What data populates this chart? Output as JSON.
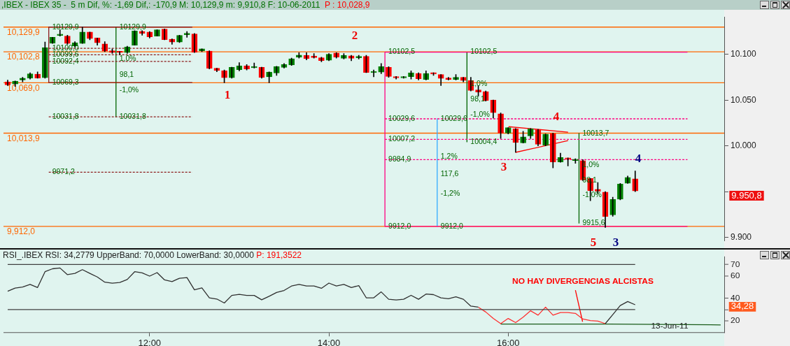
{
  "chart_data": [
    {
      "type": "candlestick",
      "title": ",IBEX - IBEX 35 -  5 m Dif, %: -1,69 Dif,: -170,9 M: 10,129,9 m: 9,910,8 F: 10-06-2011",
      "subtitle": "P : 10,028,9",
      "x": [
        10.4167,
        10.5,
        10.5833,
        10.6667,
        10.75,
        10.8333,
        10.9167,
        11,
        11.0833,
        11.1667,
        11.25,
        11.3333,
        11.4167,
        11.5,
        11.5833,
        11.6667,
        11.75,
        11.8333,
        11.9167,
        12,
        12.0833,
        12.1667,
        12.25,
        12.3333,
        12.4167,
        12.5,
        12.5833,
        12.6667,
        12.75,
        12.8333,
        12.9167,
        13,
        13.0833,
        13.1667,
        13.25,
        13.3333,
        13.4167,
        13.5,
        13.5833,
        13.6667,
        13.75,
        13.8333,
        13.9167,
        14,
        14.0833,
        14.1667,
        14.25,
        14.3333,
        14.4167,
        14.5,
        14.5833,
        14.6667,
        14.75,
        14.8333,
        14.9167,
        15,
        15.0833,
        15.1667,
        15.25,
        15.3333,
        15.4167,
        15.5,
        15.5833,
        15.6667,
        15.75,
        15.8333,
        15.9167,
        16,
        16.0833,
        16.1667,
        16.25,
        16.3333,
        16.4167,
        16.5,
        16.5833,
        16.6667,
        16.75,
        16.8333,
        16.9167,
        17,
        17.0833,
        17.1667,
        17.25,
        17.3333,
        17.4167
      ],
      "ohlc": [
        [
          10069.8,
          10072,
          10066,
          10066.7
        ],
        [
          10067.7,
          10071,
          10065,
          10070.8
        ],
        [
          10072,
          10075,
          10070,
          10074
        ],
        [
          10074.2,
          10080,
          10073,
          10078.9
        ],
        [
          10078.4,
          10081,
          10074,
          10074.2
        ],
        [
          10074.5,
          10113.5,
          10074,
          10107.5
        ],
        [
          10112.2,
          10118.7,
          10112,
          10118.7
        ],
        [
          10120.7,
          10127,
          10120,
          10121.7
        ],
        [
          10120,
          10121,
          10111,
          10112
        ],
        [
          10109.3,
          10114,
          10108,
          10112.7
        ],
        [
          10112,
          10129.9,
          10112,
          10124.4
        ],
        [
          10124.4,
          10124.4,
          10116,
          10117.4
        ],
        [
          10117.9,
          10118,
          10110,
          10112.7
        ],
        [
          10111.4,
          10114,
          10103,
          10103.6
        ],
        [
          10104,
          10106,
          10101,
          10102
        ],
        [
          10103,
          10103,
          10100,
          10102
        ],
        [
          10102,
          10109,
          10101,
          10108.3
        ],
        [
          10110,
          10126,
          10110,
          10125.7
        ],
        [
          10125.2,
          10126,
          10121,
          10123.1
        ],
        [
          10124.4,
          10125,
          10118,
          10119.2
        ],
        [
          10120,
          10127,
          10120,
          10127
        ],
        [
          10127.8,
          10128,
          10116,
          10116.1
        ],
        [
          10116.6,
          10117,
          10111,
          10113.5
        ],
        [
          10113.5,
          10121,
          10113,
          10120.8
        ],
        [
          10121.6,
          10125,
          10118.7,
          10121.8
        ],
        [
          10122.3,
          10123,
          10102,
          10102.3
        ],
        [
          10104,
          10106.2,
          10103,
          10106.2
        ],
        [
          10103.6,
          10104,
          10084,
          10084.9
        ],
        [
          10084.9,
          10085,
          10081,
          10082.3
        ],
        [
          10082.3,
          10083,
          10069,
          10074.5
        ],
        [
          10074.5,
          10086,
          10074,
          10085.9
        ],
        [
          10083.3,
          10091,
          10082,
          10087.5
        ],
        [
          10087.5,
          10089,
          10083,
          10084.1
        ],
        [
          10085.4,
          10090.6,
          10085,
          10085.5
        ],
        [
          10085.9,
          10086,
          10074,
          10075
        ],
        [
          10075.5,
          10081,
          10069,
          10080.7
        ],
        [
          10079.7,
          10087,
          10077,
          10086.7
        ],
        [
          10085.9,
          10090,
          10085,
          10089
        ],
        [
          10088.5,
          10096,
          10088,
          10095.3
        ],
        [
          10096.8,
          10102,
          10096,
          10099.2
        ],
        [
          10098.9,
          10102,
          10094,
          10095.3
        ],
        [
          10096.6,
          10101,
          10096,
          10096.5
        ],
        [
          10096.3,
          10097,
          10092,
          10093.2
        ],
        [
          10093.7,
          10101,
          10093,
          10100.2
        ],
        [
          10101.5,
          10102,
          10096,
          10097.1
        ],
        [
          10095.8,
          10101,
          10095,
          10098.9
        ],
        [
          10098.4,
          10099,
          10093,
          10095.8
        ],
        [
          10096.3,
          10099,
          10095,
          10097.9
        ],
        [
          10097.9,
          10099,
          10080,
          10080.2
        ],
        [
          10080,
          10083,
          10075.5,
          10081
        ],
        [
          10080.7,
          10090,
          10079,
          10086.7
        ],
        [
          10085.9,
          10086.6,
          10075,
          10075.8
        ],
        [
          10075.7,
          10076,
          10073,
          10074.3
        ],
        [
          10074.3,
          10076,
          10074,
          10075.7
        ],
        [
          10075.7,
          10082,
          10073,
          10079.8
        ],
        [
          10079.1,
          10080,
          10072,
          10073.3
        ],
        [
          10072.6,
          10082,
          10072,
          10079.1
        ],
        [
          10080,
          10080,
          10077,
          10078.6
        ],
        [
          10078,
          10078,
          10066,
          10073.8
        ],
        [
          10074.3,
          10075,
          10072,
          10072.6
        ],
        [
          10072.6,
          10078,
          10072,
          10075
        ],
        [
          10075,
          10075,
          10070,
          10071.4
        ],
        [
          10071.4,
          10075,
          10060,
          10060.5
        ],
        [
          10061.2,
          10066,
          10054.5,
          10058.8
        ],
        [
          10059.3,
          10060,
          10049,
          10049.6
        ],
        [
          10050.1,
          10050.1,
          10030.5,
          10036.3
        ],
        [
          10035.1,
          10036,
          10008,
          10013.9
        ],
        [
          10013.9,
          10020,
          10013,
          10019.9
        ],
        [
          10018.7,
          10019,
          9993,
          10003.7
        ],
        [
          10003.3,
          10016,
          10003,
          10009.8
        ],
        [
          10011,
          10019,
          10008,
          10018.7
        ],
        [
          10017.7,
          10018,
          10000,
          10001.8
        ],
        [
          10000.8,
          10013,
          10000,
          10012.9
        ],
        [
          10013.4,
          10014,
          9976,
          9982.5
        ],
        [
          9982.5,
          9992,
          9982,
          9987.3
        ],
        [
          9986.8,
          9987,
          9978,
          9985.4
        ],
        [
          9983.9,
          9986,
          9981,
          9983.9
        ],
        [
          9983.9,
          9985,
          9962,
          9962.7
        ],
        [
          9964.4,
          9964.4,
          9940,
          9951.1
        ],
        [
          9952.5,
          9960,
          9948,
          9950.6
        ],
        [
          9949.4,
          9950,
          9910.8,
          9922.8
        ],
        [
          9924.5,
          9944,
          9923,
          9941.4
        ],
        [
          9941.7,
          9959,
          9941,
          9958.3
        ],
        [
          9959.1,
          9967,
          9959,
          9965.6
        ],
        [
          9963.9,
          9972.6,
          9950,
          9950.8
        ]
      ],
      "colors": [
        "#ff0000",
        "#008000",
        "#008000",
        "#008000",
        "#ff0000",
        "#008000",
        "#008000",
        "#008000",
        "#ff0000",
        "#008000",
        "#008000",
        "#ff0000",
        "#ff0000",
        "#ff0000",
        "#ff0000",
        "#ff0000",
        "#008000",
        "#008000",
        "#ff0000",
        "#ff0000",
        "#008000",
        "#ff0000",
        "#ff0000",
        "#008000",
        "#008000",
        "#ff0000",
        "#008000",
        "#ff0000",
        "#ff0000",
        "#ff0000",
        "#008000",
        "#008000",
        "#ff0000",
        "#008000",
        "#ff0000",
        "#008000",
        "#008000",
        "#008000",
        "#008000",
        "#008000",
        "#ff0000",
        "#ff0000",
        "#ff0000",
        "#008000",
        "#ff0000",
        "#008000",
        "#ff0000",
        "#008000",
        "#ff0000",
        "#008000",
        "#008000",
        "#ff0000",
        "#ff0000",
        "#008000",
        "#008000",
        "#ff0000",
        "#008000",
        "#ff0000",
        "#ff0000",
        "#ff0000",
        "#008000",
        "#ff0000",
        "#ff0000",
        "#ff0000",
        "#ff0000",
        "#ff0000",
        "#ff0000",
        "#008000",
        "#ff0000",
        "#008000",
        "#008000",
        "#ff0000",
        "#008000",
        "#ff0000",
        "#008000",
        "#ff0000",
        "#008000",
        "#ff0000",
        "#ff0000",
        "#ff0000",
        "#ff0000",
        "#008000",
        "#008000",
        "#008000",
        "#ff0000"
      ],
      "xlim": [
        10.37,
        18.41
      ],
      "ylim": [
        9896,
        10141
      ],
      "yticks": [
        {
          "value": 9900,
          "label": "9.900"
        },
        {
          "value": 9950,
          "label": null
        },
        {
          "value": 10000,
          "label": "10.000"
        },
        {
          "value": 10050,
          "label": "10.050"
        },
        {
          "value": 10100,
          "label": "10.100"
        }
      ],
      "tick_labels": "y",
      "series": [
        {
          "type": "line",
          "color": "#8b1a1a",
          "x": [
            10.875,
            12.476
          ],
          "values": [
            10129.9,
            10129.9
          ]
        },
        {
          "type": "line",
          "color": "#8b1a1a",
          "x": [
            10.875,
            10.875
          ],
          "values": [
            10129.9,
            10069.3
          ]
        },
        {
          "type": "line",
          "color": "#8b1a1a",
          "x": [
            10.875,
            12.476
          ],
          "values": [
            10069.3,
            10069.3
          ]
        },
        {
          "type": "line",
          "color": "#8b1a1a",
          "line_style": "dashed",
          "x": [
            10.875,
            12.476
          ],
          "values": [
            10106.7,
            10106.7
          ]
        },
        {
          "type": "line",
          "color": "#8b1a1a",
          "line_style": "dashed",
          "x": [
            10.875,
            12.476
          ],
          "values": [
            10099.6,
            10099.6
          ]
        },
        {
          "type": "line",
          "color": "#8b1a1a",
          "line_style": "dashed",
          "x": [
            10.875,
            12.476
          ],
          "values": [
            10092.4,
            10092.4
          ]
        },
        {
          "type": "line",
          "color": "#8b1a1a",
          "line_style": "dashed",
          "x": [
            10.875,
            12.476
          ],
          "values": [
            10031.8,
            10031.8
          ]
        },
        {
          "type": "line",
          "color": "#8b1a1a",
          "line_style": "dashed",
          "x": [
            10.875,
            12.476
          ],
          "values": [
            9971.2,
            9971.2
          ]
        },
        {
          "type": "line",
          "color": "#ff0080",
          "x": [
            14.625,
            18.0
          ],
          "values": [
            10102.5,
            10102.5
          ]
        },
        {
          "type": "line",
          "color": "#ff0080",
          "x": [
            14.625,
            14.625
          ],
          "values": [
            10102.5,
            9912
          ]
        },
        {
          "type": "line",
          "color": "#ff0080",
          "x": [
            14.625,
            18.0
          ],
          "values": [
            9912,
            9912
          ]
        },
        {
          "type": "line",
          "color": "#ff0080",
          "line_style": "dashed",
          "x": [
            14.625,
            18.0
          ],
          "values": [
            10029.6,
            10029.6
          ]
        },
        {
          "type": "line",
          "color": "#ff0080",
          "line_style": "dashed",
          "x": [
            14.625,
            18.0
          ],
          "values": [
            10007.2,
            10007.2
          ]
        },
        {
          "type": "line",
          "color": "#ff0080",
          "line_style": "dashed",
          "x": [
            14.625,
            18.0
          ],
          "values": [
            9984.9,
            9984.9
          ]
        },
        {
          "type": "line",
          "color": "#006400",
          "x": [
            11.625,
            11.625
          ],
          "values": [
            10129.9,
            10031.8
          ]
        },
        {
          "type": "line",
          "color": "#006400",
          "x": [
            15.54,
            15.54
          ],
          "values": [
            10102.5,
            10004.4
          ]
        },
        {
          "type": "line",
          "color": "#006400",
          "x": [
            16.79,
            16.79
          ],
          "values": [
            10013.7,
            9915.6
          ]
        },
        {
          "type": "line",
          "color": "#33aaff",
          "x": [
            15.208,
            15.208
          ],
          "values": [
            10029.6,
            9912
          ]
        },
        {
          "type": "line",
          "color": "#ff0000",
          "x": [
            16.004,
            16.668
          ],
          "values": [
            10021,
            10015
          ]
        },
        {
          "type": "line",
          "color": "#ff0000",
          "x": [
            16.082,
            16.668
          ],
          "values": [
            9992.9,
            10005.8
          ]
        }
      ],
      "ref_lines": [
        {
          "axis": "y",
          "value": 10129.9,
          "label": "10,129,9",
          "color": "#ff6600"
        },
        {
          "axis": "y",
          "value": 10102.8,
          "label": "10,102,8",
          "color": "#ff6600"
        },
        {
          "axis": "y",
          "value": 10069,
          "label": "10,069,0",
          "color": "#ff6600"
        },
        {
          "axis": "y",
          "value": 10013.9,
          "label": "10,013,9",
          "color": "#ff6600"
        },
        {
          "axis": "y",
          "value": 9912,
          "label": "9,912,0",
          "color": "#ff6600"
        }
      ],
      "annotations": [
        {
          "text": "10129,9",
          "x": 10.875,
          "y": 10129.9
        },
        {
          "text": "10100,0",
          "x": 10.875,
          "y": 10106.7
        },
        {
          "text": "10099,6",
          "x": 10.875,
          "y": 10099.6
        },
        {
          "text": "10092,4",
          "x": 10.875,
          "y": 10092.4
        },
        {
          "text": "10069,3",
          "x": 10.875,
          "y": 10069.3
        },
        {
          "text": "10031,8",
          "x": 10.875,
          "y": 10031.8
        },
        {
          "text": "9971,2",
          "x": 10.875,
          "y": 9971.2
        },
        {
          "text": "10129,9",
          "x": 11.625,
          "y": 10129.9
        },
        {
          "text": "1,0%",
          "x": 11.625,
          "y": 10095
        },
        {
          "text": "98,1",
          "x": 11.625,
          "y": 10078
        },
        {
          "text": "-1,0%",
          "x": 11.625,
          "y": 10061
        },
        {
          "text": "10031,8",
          "x": 11.625,
          "y": 10031.8
        },
        {
          "text": "10102,5",
          "x": 14.625,
          "y": 10102.5
        },
        {
          "text": "10029,6",
          "x": 14.625,
          "y": 10029.6
        },
        {
          "text": "10007,2",
          "x": 14.625,
          "y": 10007.2
        },
        {
          "text": "9984,9",
          "x": 14.625,
          "y": 9984.9
        },
        {
          "text": "9912,0",
          "x": 14.625,
          "y": 9912
        },
        {
          "text": "10102,5",
          "x": 15.54,
          "y": 10102.5
        },
        {
          "text": "1,0%",
          "x": 15.54,
          "y": 10068
        },
        {
          "text": "98,1",
          "x": 15.54,
          "y": 10051
        },
        {
          "text": "-1,0%",
          "x": 15.54,
          "y": 10034
        },
        {
          "text": "10004,4",
          "x": 15.54,
          "y": 10004.4
        },
        {
          "text": "10029,6",
          "x": 15.208,
          "y": 10029.6
        },
        {
          "text": "1,2%",
          "x": 15.208,
          "y": 9988
        },
        {
          "text": "117,6",
          "x": 15.208,
          "y": 9969
        },
        {
          "text": "-1,2%",
          "x": 15.208,
          "y": 9948
        },
        {
          "text": "9912,0",
          "x": 15.208,
          "y": 9912
        },
        {
          "text": "10013,7",
          "x": 16.79,
          "y": 10013.7
        },
        {
          "text": "1,0%",
          "x": 16.79,
          "y": 9979
        },
        {
          "text": "98,1",
          "x": 16.79,
          "y": 9962
        },
        {
          "text": "-1,0%",
          "x": 16.79,
          "y": 9946
        },
        {
          "text": "9915,6",
          "x": 16.79,
          "y": 9915.6
        },
        "1",
        "2",
        "3",
        "4",
        "4",
        "5",
        "3",
        "9.950,8"
      ]
    },
    {
      "type": "line",
      "title": "RSI_.IBEX RSI: 34,2779 UpperBand: 70,0000 LowerBand: 30,0000",
      "subtitle": "P: 191,3522",
      "x": [
        10.4167,
        10.5,
        10.5833,
        10.6667,
        10.75,
        10.8333,
        10.9167,
        11,
        11.0833,
        11.1667,
        11.25,
        11.3333,
        11.4167,
        11.5,
        11.5833,
        11.6667,
        11.75,
        11.8333,
        11.9167,
        12,
        12.0833,
        12.1667,
        12.25,
        12.3333,
        12.4167,
        12.5,
        12.5833,
        12.6667,
        12.75,
        12.8333,
        12.9167,
        13,
        13.0833,
        13.1667,
        13.25,
        13.3333,
        13.4167,
        13.5,
        13.5833,
        13.6667,
        13.75,
        13.8333,
        13.9167,
        14,
        14.0833,
        14.1667,
        14.25,
        14.3333,
        14.4167,
        14.5,
        14.5833,
        14.6667,
        14.75,
        14.8333,
        14.9167,
        15,
        15.0833,
        15.1667,
        15.25,
        15.3333,
        15.4167,
        15.5,
        15.5833,
        15.6667,
        15.75,
        15.8333,
        15.9167,
        16,
        16.0833,
        16.1667,
        16.25,
        16.3333,
        16.4167,
        16.5,
        16.5833,
        16.6667,
        16.75,
        16.8333,
        16.9167,
        17,
        17.0833,
        17.1667,
        17.25,
        17.3333,
        17.4167
      ],
      "xlim": [
        10.37,
        18.41
      ],
      "xticks": [
        {
          "value": 12,
          "label": "12:00"
        },
        {
          "value": 14,
          "label": "14:00"
        },
        {
          "value": 16,
          "label": "16:00"
        }
      ],
      "ylim": [
        10,
        77
      ],
      "yticks": [
        20,
        {
          "value": 30,
          "label": null
        },
        40,
        60,
        70
      ],
      "series": [
        {
          "color": "#404040",
          "x": [
            10.4167,
            17.4167
          ],
          "values": [
            70,
            70
          ]
        },
        {
          "color": "#404040",
          "x": [
            10.4167,
            17.4167
          ],
          "values": [
            30,
            30
          ]
        },
        {
          "color": "#303030",
          "values": [
            46.3,
            49.1,
            50,
            52.4,
            49.6,
            63.6,
            66.2,
            66.9,
            61,
            62.1,
            65.4,
            62.1,
            58.9,
            54.3,
            53.5,
            54.1,
            56.7,
            63.6,
            62.6,
            59.7,
            62.8,
            56.3,
            54.8,
            57.8,
            58.4,
            47.6,
            49.3,
            40.5,
            39.4,
            35.9,
            42.6,
            43.5,
            42.6,
            42.6,
            38.7,
            41.8,
            45.2,
            47,
            50.9,
            52.4,
            50.9,
            50.9,
            48.9,
            53.5,
            50.9,
            52.4,
            49.6,
            51.3,
            40.5,
            40.5,
            45.7,
            39.2,
            38.6,
            39.2,
            42.7,
            39.2,
            43.8,
            43.3,
            40.4,
            39.7,
            41.3,
            39.2,
            33.1,
            32.2,
            null,
            null,
            null,
            null,
            null,
            null,
            null,
            null,
            null,
            null,
            null,
            null,
            null,
            null,
            null,
            null,
            17.6,
            25.6,
            33.6,
            37.2,
            34.3
          ]
        },
        {
          "color": "#ff3030",
          "values": [
            null,
            null,
            null,
            null,
            null,
            null,
            null,
            null,
            null,
            null,
            null,
            null,
            null,
            null,
            null,
            null,
            null,
            null,
            null,
            null,
            null,
            null,
            null,
            null,
            null,
            null,
            null,
            null,
            null,
            null,
            null,
            null,
            null,
            null,
            null,
            null,
            null,
            null,
            null,
            null,
            null,
            null,
            null,
            null,
            null,
            null,
            null,
            null,
            null,
            null,
            null,
            null,
            null,
            null,
            null,
            null,
            null,
            null,
            null,
            null,
            null,
            null,
            null,
            32.2,
            27.9,
            22.2,
            17.6,
            22.2,
            18.5,
            23.3,
            29,
            25.1,
            32.2,
            25.1,
            27.4,
            27.4,
            26.7,
            21.7,
            20.3,
            19.9,
            17.6,
            null,
            null,
            null,
            null
          ]
        },
        {
          "color": "#1a5c1a",
          "x": [
            15.9167,
            17.13,
            18.37
          ],
          "values": [
            17.2,
            17.2,
            16.5
          ]
        },
        {
          "color": "#ff0000",
          "x": [
            16.75,
            16.83
          ],
          "values": [
            47.2,
            19.3
          ]
        }
      ],
      "annotations": [
        "NO HAY DIVERGENCIAS ALCISTAS",
        "13-Jun-11",
        "34,28"
      ]
    }
  ]
}
